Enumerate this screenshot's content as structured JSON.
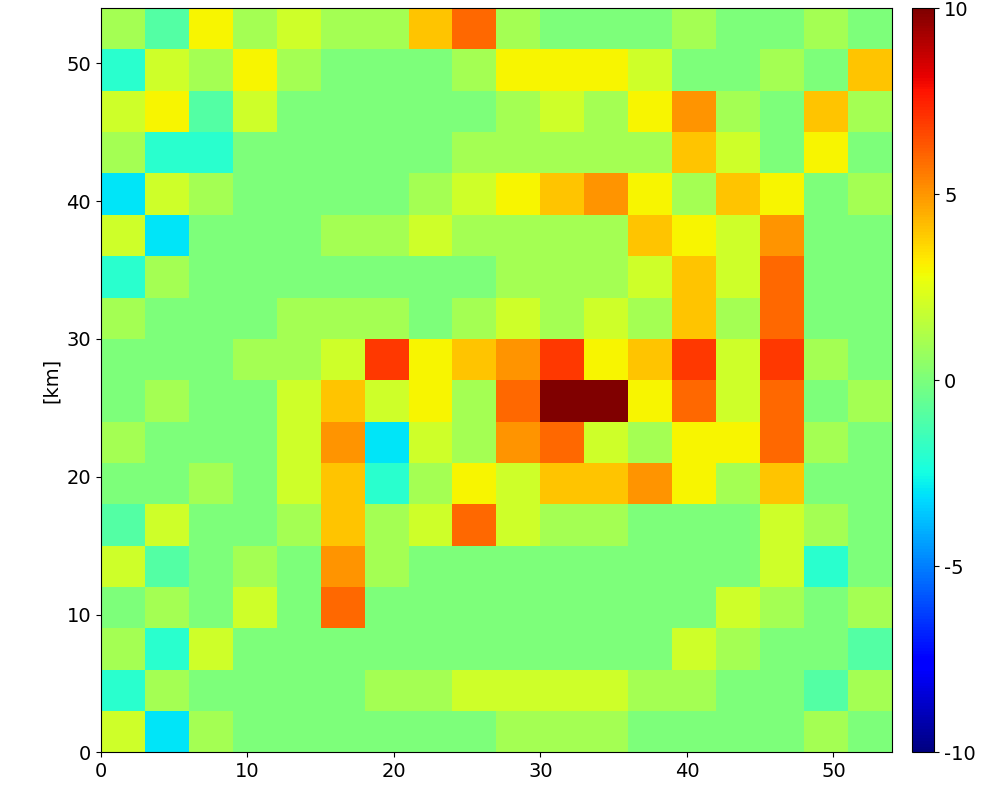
{
  "chart_data": {
    "type": "heatmap",
    "y_label": "[km]",
    "xlim": [
      0,
      54
    ],
    "ylim": [
      0,
      54
    ],
    "xticks": [
      0,
      10,
      20,
      30,
      40,
      50
    ],
    "yticks": [
      0,
      10,
      20,
      30,
      40,
      50
    ],
    "x_edges": [
      0,
      3,
      6,
      9,
      12,
      15,
      18,
      21,
      24,
      27,
      30,
      33,
      36,
      39,
      42,
      45,
      48,
      51,
      54
    ],
    "y_edges": [
      0,
      3,
      6,
      9,
      12,
      15,
      18,
      21,
      24,
      27,
      30,
      33,
      36,
      39,
      42,
      45,
      48,
      51,
      54
    ],
    "cells": [
      [
        2,
        -3,
        1,
        0,
        0,
        0,
        0,
        0,
        0,
        1,
        1,
        1,
        0,
        0,
        0,
        0,
        1,
        0
      ],
      [
        -2,
        1,
        0,
        0,
        0,
        0,
        1,
        1,
        2,
        2,
        2,
        2,
        1,
        1,
        0,
        0,
        -1,
        1
      ],
      [
        1,
        -2,
        2,
        0,
        0,
        0,
        0,
        0,
        0,
        0,
        0,
        0,
        0,
        2,
        1,
        0,
        0,
        -1
      ],
      [
        0,
        1,
        0,
        2,
        0,
        6,
        0,
        0,
        0,
        0,
        0,
        0,
        0,
        0,
        2,
        1,
        0,
        1
      ],
      [
        2,
        -1,
        0,
        1,
        0,
        5,
        1,
        0,
        0,
        0,
        0,
        0,
        0,
        0,
        0,
        2,
        -2,
        0
      ],
      [
        -1,
        2,
        0,
        0,
        1,
        4,
        1,
        2,
        6,
        2,
        1,
        1,
        0,
        0,
        0,
        2,
        1,
        0
      ],
      [
        0,
        0,
        1,
        0,
        2,
        4,
        -2,
        1,
        3,
        2,
        4,
        4,
        5,
        3,
        1,
        4,
        0,
        0
      ],
      [
        1,
        0,
        0,
        0,
        2,
        5,
        -3,
        2,
        1,
        5,
        6,
        2,
        1,
        3,
        3,
        6,
        1,
        0
      ],
      [
        0,
        1,
        0,
        0,
        2,
        4,
        2,
        3,
        1,
        6,
        10,
        10,
        3,
        6,
        2,
        6,
        0,
        1
      ],
      [
        0,
        0,
        0,
        1,
        1,
        2,
        7,
        3,
        4,
        5,
        7,
        3,
        4,
        7,
        2,
        7,
        1,
        0
      ],
      [
        1,
        0,
        0,
        0,
        1,
        1,
        1,
        0,
        1,
        2,
        1,
        2,
        1,
        4,
        1,
        6,
        0,
        0
      ],
      [
        -2,
        1,
        0,
        0,
        0,
        0,
        0,
        0,
        0,
        1,
        1,
        1,
        2,
        4,
        2,
        6,
        0,
        0
      ],
      [
        2,
        -3,
        0,
        0,
        0,
        1,
        1,
        2,
        1,
        1,
        1,
        1,
        4,
        3,
        2,
        5,
        0,
        0
      ],
      [
        -3,
        2,
        1,
        0,
        0,
        0,
        0,
        1,
        2,
        3,
        4,
        5,
        3,
        1,
        4,
        3,
        0,
        1
      ],
      [
        1,
        -2,
        -2,
        0,
        0,
        0,
        0,
        0,
        1,
        1,
        1,
        1,
        1,
        4,
        2,
        0,
        3,
        0
      ],
      [
        2,
        3,
        -1,
        2,
        0,
        0,
        0,
        0,
        0,
        1,
        2,
        1,
        3,
        5,
        1,
        0,
        4,
        1
      ],
      [
        -2,
        2,
        1,
        3,
        1,
        0,
        0,
        0,
        1,
        3,
        3,
        3,
        2,
        0,
        0,
        1,
        0,
        4
      ],
      [
        1,
        -1,
        3,
        1,
        2,
        1,
        1,
        4,
        6,
        1,
        0,
        0,
        0,
        1,
        0,
        0,
        1,
        0
      ]
    ],
    "colorbar_range": [
      -10,
      10
    ],
    "colorbar_ticks": [
      -10,
      -5,
      0,
      5,
      10
    ]
  }
}
